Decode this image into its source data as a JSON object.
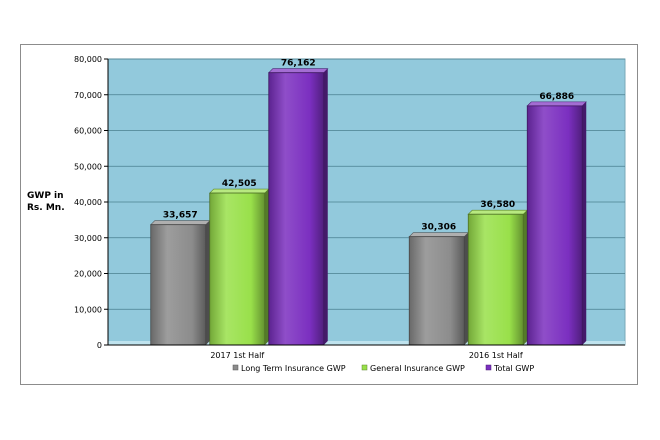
{
  "chart_data": {
    "type": "bar",
    "title": "",
    "xlabel": "",
    "ylabel_lines": [
      "GWP in",
      "Rs. Mn."
    ],
    "categories": [
      "2017   1st Half",
      "2016   1st Half"
    ],
    "ylim": [
      0,
      80000
    ],
    "yticks": [
      0,
      10000,
      20000,
      30000,
      40000,
      50000,
      60000,
      70000,
      80000
    ],
    "ytick_labels": [
      "0",
      "10,000",
      "20,000",
      "30,000",
      "40,000",
      "50,000",
      "60,000",
      "70,000",
      "80,000"
    ],
    "grid": true,
    "legend_position": "bottom",
    "plot_background": "#92c9dc",
    "series": [
      {
        "name": "Long Term Insurance   GWP",
        "color": "#8c8c8c",
        "values": [
          33657,
          30306
        ],
        "labels": [
          "33,657",
          "30,306"
        ]
      },
      {
        "name": "General Insurance   GWP",
        "color": "#99e04a",
        "values": [
          42505,
          36580
        ],
        "labels": [
          "42,505",
          "36,580"
        ]
      },
      {
        "name": "Total  GWP",
        "color": "#7b2fc0",
        "values": [
          76162,
          66886
        ],
        "labels": [
          "76,162",
          "66,886"
        ]
      }
    ]
  }
}
